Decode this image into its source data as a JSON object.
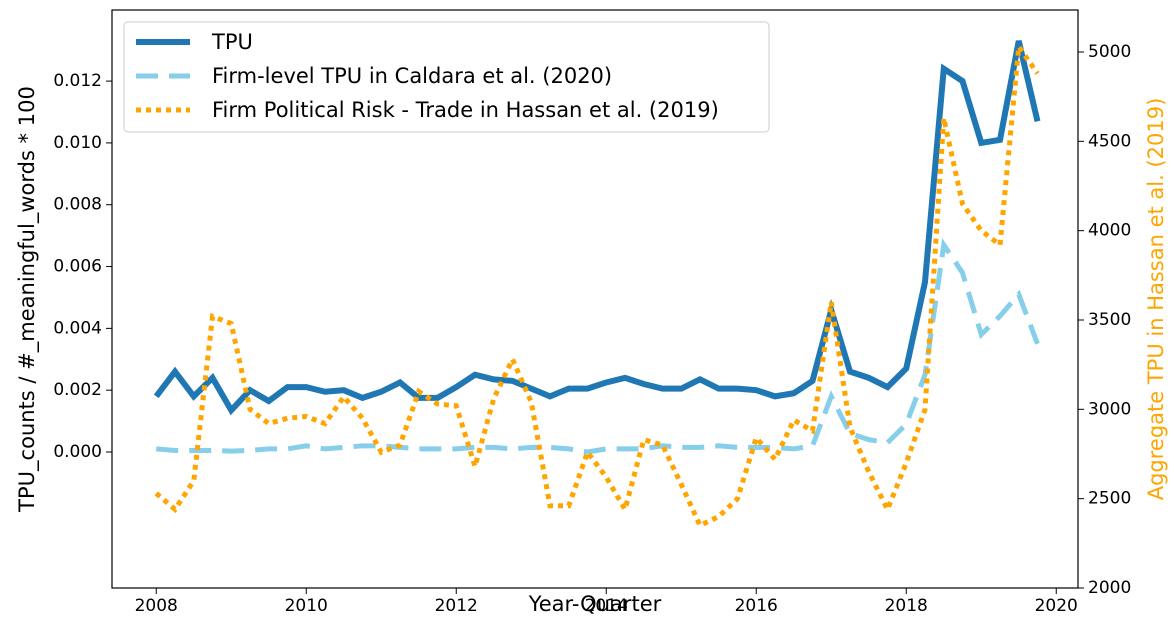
{
  "chart_data": {
    "type": "line",
    "xlabel": "Year-Quarter",
    "ylabel": "TPU_counts / #_meaningful_words * 100",
    "y2label": "Aggregate TPU in Hassan et al. (2019)",
    "y2label_color": "#ffa500",
    "legend": "upper left",
    "x": [
      2008,
      2008.25,
      2008.5,
      2008.75,
      2009,
      2009.25,
      2009.5,
      2009.75,
      2010,
      2010.25,
      2010.5,
      2010.75,
      2011,
      2011.25,
      2011.5,
      2011.75,
      2012,
      2012.25,
      2012.5,
      2012.75,
      2013,
      2013.25,
      2013.5,
      2013.75,
      2014,
      2014.25,
      2014.5,
      2014.75,
      2015,
      2015.25,
      2015.5,
      2015.75,
      2016,
      2016.25,
      2016.5,
      2016.75,
      2017,
      2017.25,
      2017.5,
      2017.75,
      2018,
      2018.25,
      2018.5,
      2018.75,
      2019,
      2019.25,
      2019.5,
      2019.75
    ],
    "xlim": [
      2007.41,
      2020.29
    ],
    "xticks": [
      2008,
      2010,
      2012,
      2014,
      2016,
      2018,
      2020
    ],
    "ylim": [
      -0.0044,
      0.0143
    ],
    "yticks": [
      {
        "value": 0,
        "label": "0.000"
      },
      0.002,
      0.004,
      0.006,
      0.008,
      {
        "value": 0.01,
        "label": "0.010"
      },
      0.012
    ],
    "y2lim": [
      2000,
      5235
    ],
    "y2ticks": [
      2000,
      2500,
      3000,
      3500,
      4000,
      4500,
      5000
    ],
    "series": [
      {
        "name": "TPU",
        "color": "#1f77b4",
        "style": "solid",
        "values": [
          0.0018,
          0.0026,
          0.0018,
          0.0024,
          0.00135,
          0.002,
          0.00165,
          0.0021,
          0.0021,
          0.00195,
          0.002,
          0.00175,
          0.00195,
          0.00225,
          0.00175,
          0.00175,
          0.0021,
          0.0025,
          0.00235,
          0.0023,
          0.00205,
          0.0018,
          0.00205,
          0.00205,
          0.00225,
          0.0024,
          0.0022,
          0.00205,
          0.00205,
          0.00235,
          0.00205,
          0.00205,
          0.002,
          0.0018,
          0.0019,
          0.0023,
          0.0046,
          0.0026,
          0.0024,
          0.0021,
          0.0027,
          0.0055,
          0.0124,
          0.012,
          0.01,
          0.0101,
          0.0133,
          0.0107
        ]
      },
      {
        "name": "Firm-level TPU in Caldara et al. (2020)",
        "color": "#87ceeb",
        "style": "dashed",
        "values": [
          0.0001,
          5e-05,
          5e-05,
          5e-05,
          3e-05,
          5e-05,
          0.0001,
          0.0001,
          0.0002,
          0.0001,
          0.00015,
          0.0002,
          0.0002,
          0.00015,
          0.0001,
          0.0001,
          0.0001,
          0.00015,
          0.00015,
          0.0001,
          0.00015,
          0.00015,
          0.0001,
          0,
          0.0001,
          0.0001,
          0.0001,
          0.0002,
          0.00015,
          0.00015,
          0.0002,
          0.00015,
          0.00015,
          0.00015,
          0.0001,
          0.0002,
          0.0018,
          0.0006,
          0.0004,
          0.0003,
          0.0009,
          0.0025,
          0.0067,
          0.0058,
          0.0038,
          0.0044,
          0.0051,
          0.0035
        ]
      },
      {
        "name": "Firm Political Risk - Trade in Hassan et al. (2019)",
        "color": "#ffa500",
        "style": "dotted",
        "axis": "y2",
        "values": [
          2530,
          2440,
          2600,
          3520,
          3480,
          3000,
          2920,
          2950,
          2960,
          2920,
          3070,
          2950,
          2760,
          2800,
          3100,
          3030,
          3020,
          2680,
          3060,
          3280,
          3040,
          2460,
          2460,
          2760,
          2620,
          2440,
          2830,
          2800,
          2580,
          2350,
          2400,
          2500,
          2840,
          2720,
          2940,
          2880,
          3600,
          2900,
          2650,
          2440,
          2700,
          3000,
          4630,
          4150,
          4000,
          3920,
          5030,
          4880
        ]
      }
    ]
  }
}
